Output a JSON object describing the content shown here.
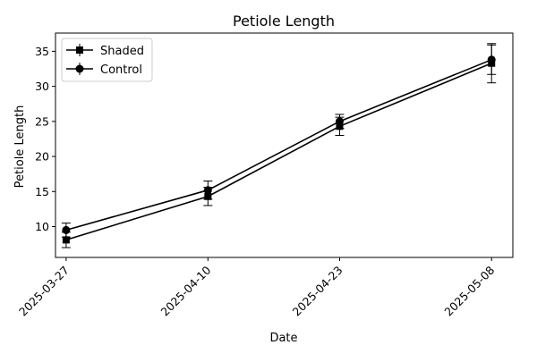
{
  "chart_data": {
    "type": "line",
    "title": "Petiole Length",
    "xlabel": "Date",
    "ylabel": "Petiole Length",
    "x": [
      "2025-03-27",
      "2025-04-10",
      "2025-04-23",
      "2025-05-08"
    ],
    "x_days": [
      0,
      14,
      27,
      42
    ],
    "xlim_days": [
      -1.05,
      44.1
    ],
    "ylim": [
      5.6,
      37.6
    ],
    "yticks": [
      10,
      15,
      20,
      25,
      30,
      35
    ],
    "grid": false,
    "legend": "top-left",
    "error_bars": true,
    "series": [
      {
        "name": "Shaded",
        "marker": "square",
        "color": "#000000",
        "values": [
          8.1,
          14.3,
          24.3,
          33.3
        ],
        "errors": [
          1.1,
          1.3,
          1.3,
          2.8
        ]
      },
      {
        "name": "Control",
        "marker": "circle",
        "color": "#000000",
        "values": [
          9.5,
          15.2,
          25.0,
          33.8
        ],
        "errors": [
          1.0,
          1.3,
          1.0,
          2.1
        ]
      }
    ]
  }
}
